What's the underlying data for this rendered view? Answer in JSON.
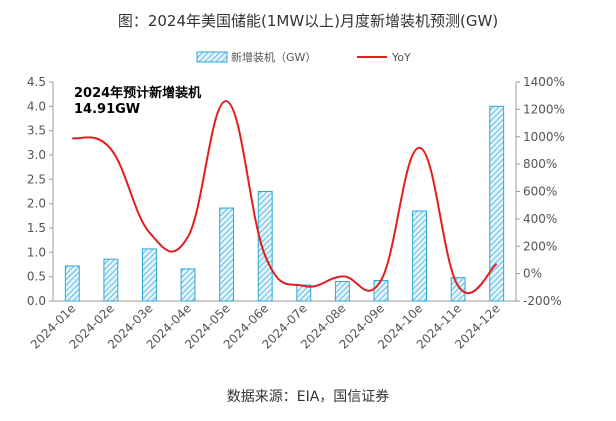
{
  "header": {
    "title": "图：2024年美国储能(1MW以上)月度新增装机预测(GW)"
  },
  "footer": {
    "source": "数据来源：EIA，国信证券"
  },
  "colors": {
    "bar_fill": "#bfe4f5",
    "bar_stroke": "#2ea8d8",
    "line": "#e01f1f",
    "axis": "#9a9a9a"
  },
  "chart_data": {
    "type": "bar",
    "categories": [
      "2024-01e",
      "2024-02e",
      "2024-03e",
      "2024-04e",
      "2024-05e",
      "2024-06e",
      "2024-07e",
      "2024-08e",
      "2024-09e",
      "2024-10e",
      "2024-11e",
      "2024-12e"
    ],
    "series": [
      {
        "name": "新增装机（GW）",
        "type": "bar",
        "axis": "left",
        "values": [
          0.72,
          0.86,
          1.07,
          0.66,
          1.91,
          2.25,
          0.33,
          0.4,
          0.42,
          1.85,
          0.48,
          4.0
        ]
      },
      {
        "name": "YoY",
        "type": "line",
        "axis": "right",
        "smooth": true,
        "values": [
          990,
          910,
          300,
          270,
          1260,
          130,
          -90,
          -20,
          -50,
          920,
          -90,
          70
        ]
      }
    ],
    "ylim_left": [
      0,
      4.5
    ],
    "yticks_left": [
      "0.0",
      "0.5",
      "1.0",
      "1.5",
      "2.0",
      "2.5",
      "3.0",
      "3.5",
      "4.0",
      "4.5"
    ],
    "ylim_right": [
      -200,
      1400
    ],
    "yticks_right": [
      "-200%",
      "0%",
      "200%",
      "400%",
      "600%",
      "800%",
      "1000%",
      "1200%",
      "1400%"
    ],
    "legend_position": "top",
    "grid": false,
    "annotation": [
      "2024年预计新增装机",
      "14.91GW"
    ]
  }
}
